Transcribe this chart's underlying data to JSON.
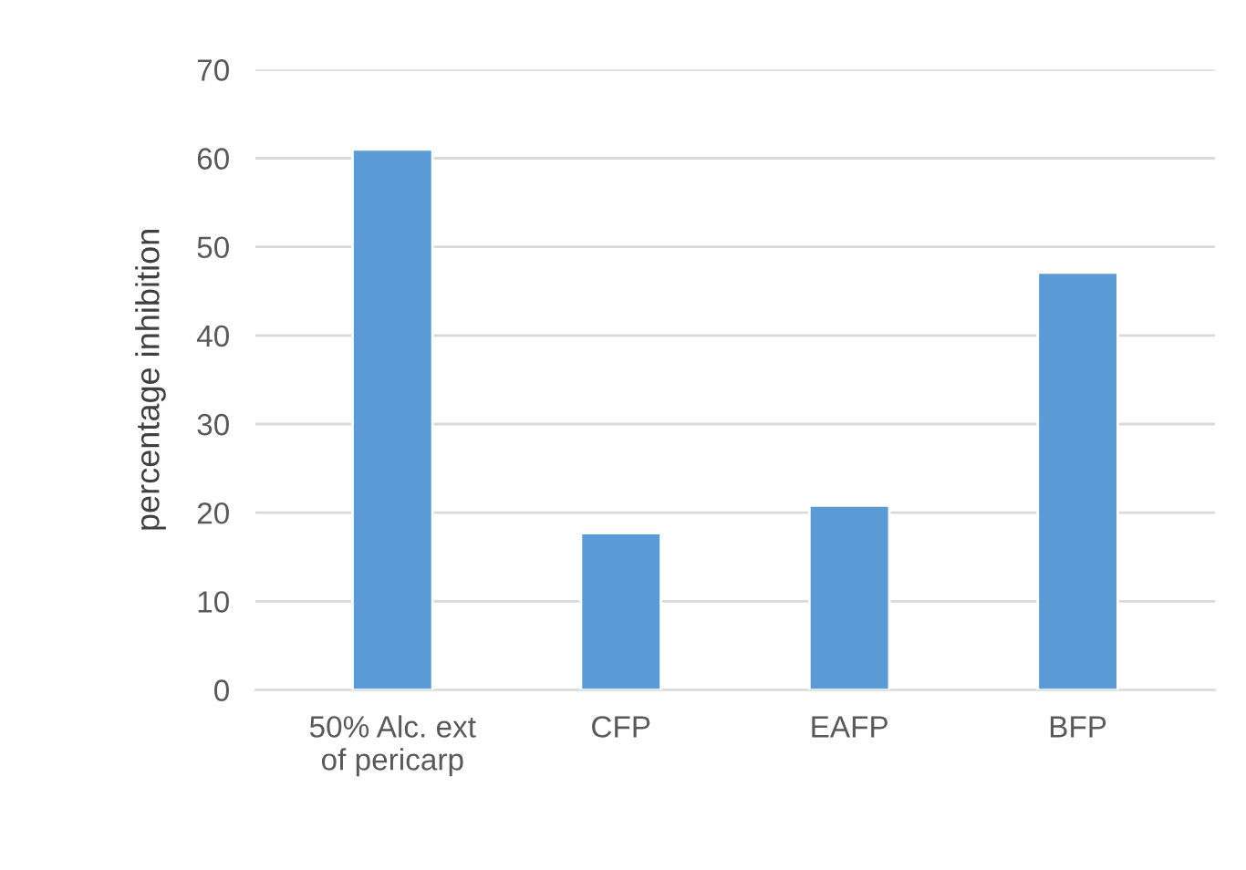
{
  "chart_data": {
    "type": "bar",
    "ylabel": "percentage inhibition",
    "categories": [
      "50% Alc. ext\nof pericarp",
      "CFP",
      "EAFP",
      "BFP"
    ],
    "values": [
      61,
      17.7,
      20.8,
      47.1
    ],
    "color": "#5b9bd5",
    "ylim": [
      0,
      70
    ],
    "yticks": [
      0,
      10,
      20,
      30,
      40,
      50,
      60,
      70
    ],
    "grid": "y",
    "legend": false
  }
}
